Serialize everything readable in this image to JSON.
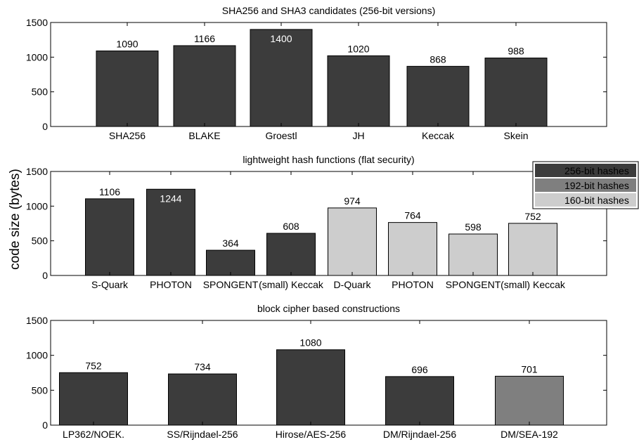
{
  "ylabel": "code size (bytes)",
  "legend": {
    "entries": [
      {
        "label": "256-bit hashes",
        "color": "#3c3c3c"
      },
      {
        "label": "192-bit hashes",
        "color": "#7f7f7f"
      },
      {
        "label": "160-bit hashes",
        "color": "#cdcdcd"
      }
    ]
  },
  "chart_data": [
    {
      "type": "bar",
      "title": "SHA256 and SHA3 candidates (256-bit versions)",
      "categories": [
        "SHA256",
        "BLAKE",
        "Groestl",
        "JH",
        "Keccak",
        "Skein"
      ],
      "values": [
        1090,
        1166,
        1400,
        1020,
        868,
        988
      ],
      "value_labels": [
        "1090",
        "1166",
        "1400",
        "1020",
        "868",
        "988"
      ],
      "bar_colors": [
        "#3c3c3c",
        "#3c3c3c",
        "#3c3c3c",
        "#3c3c3c",
        "#3c3c3c",
        "#3c3c3c"
      ],
      "ylim": [
        0,
        1500
      ],
      "yticks": [
        0,
        500,
        1000,
        1500
      ],
      "ylabel": "code size (bytes)",
      "grid": false
    },
    {
      "type": "bar",
      "title": "lightweight hash functions (flat security)",
      "categories": [
        "S-Quark",
        "PHOTON",
        "SPONGENT",
        "(small) Keccak",
        "D-Quark",
        "PHOTON",
        "SPONGENT",
        "(small) Keccak"
      ],
      "values": [
        1106,
        1244,
        364,
        608,
        974,
        764,
        598,
        752
      ],
      "value_labels": [
        "1106",
        "1244",
        "364",
        "608",
        "974",
        "764",
        "598",
        "752"
      ],
      "bar_colors": [
        "#3c3c3c",
        "#3c3c3c",
        "#3c3c3c",
        "#3c3c3c",
        "#cdcdcd",
        "#cdcdcd",
        "#cdcdcd",
        "#cdcdcd"
      ],
      "ylim": [
        0,
        1500
      ],
      "yticks": [
        0,
        500,
        1000,
        1500
      ],
      "ylabel": "code size (bytes)",
      "legend_position": "top-right",
      "grid": false
    },
    {
      "type": "bar",
      "title": "block cipher based constructions",
      "categories": [
        "LP362/NOEK.",
        "SS/Rijndael-256",
        "Hirose/AES-256",
        "DM/Rijndael-256",
        "DM/SEA-192"
      ],
      "values": [
        752,
        734,
        1080,
        696,
        701
      ],
      "value_labels": [
        "752",
        "734",
        "1080",
        "696",
        "701"
      ],
      "bar_colors": [
        "#3c3c3c",
        "#3c3c3c",
        "#3c3c3c",
        "#3c3c3c",
        "#7f7f7f"
      ],
      "ylim": [
        0,
        1500
      ],
      "yticks": [
        0,
        500,
        1000,
        1500
      ],
      "ylabel": "code size (bytes)",
      "grid": false
    }
  ]
}
